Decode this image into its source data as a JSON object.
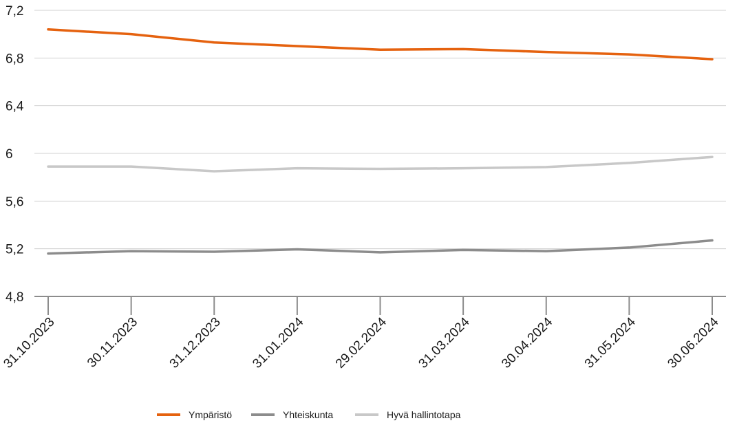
{
  "chart_data": {
    "type": "line",
    "title": "",
    "xlabel": "",
    "ylabel": "",
    "categories": [
      "31.10.2023",
      "30.11.2023",
      "31.12.2023",
      "31.01.2024",
      "29.02.2024",
      "31.03.2024",
      "30.04.2024",
      "31.05.2024",
      "30.06.2024"
    ],
    "yticks": [
      "4,8",
      "5,2",
      "5,6",
      "6",
      "6,4",
      "6,8",
      "7,2"
    ],
    "ylim": [
      4.8,
      7.2
    ],
    "grid": "horizontal",
    "legend_position": "bottom",
    "series": [
      {
        "name": "Ympäristö",
        "color": "#e5620f",
        "values": [
          7.04,
          7.0,
          6.93,
          6.9,
          6.87,
          6.875,
          6.85,
          6.83,
          6.79
        ]
      },
      {
        "name": "Yhteiskunta",
        "color": "#8c8c8c",
        "values": [
          5.16,
          5.18,
          5.175,
          5.195,
          5.17,
          5.19,
          5.18,
          5.21,
          5.27
        ]
      },
      {
        "name": "Hyvä hallintotapa",
        "color": "#c8c8c8",
        "values": [
          5.89,
          5.89,
          5.85,
          5.875,
          5.87,
          5.875,
          5.885,
          5.92,
          5.97
        ]
      }
    ]
  }
}
